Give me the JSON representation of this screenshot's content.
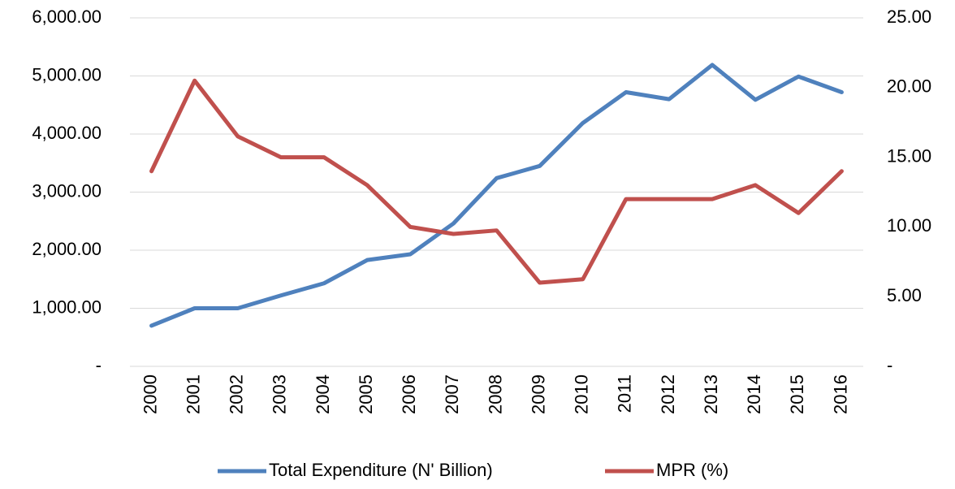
{
  "chart_data": {
    "type": "line",
    "categories": [
      "2000",
      "2001",
      "2002",
      "2003",
      "2004",
      "2005",
      "2006",
      "2007",
      "2008",
      "2009",
      "2010",
      "2011",
      "2012",
      "2013",
      "2014",
      "2015",
      "2016"
    ],
    "series": [
      {
        "name": "Total Expenditure (N' Billion)",
        "color": "#4f81bd",
        "values": [
          700,
          1000,
          1000,
          1220,
          1430,
          1830,
          1930,
          2460,
          3240,
          3450,
          4190,
          4720,
          4600,
          5190,
          4590,
          4990,
          4720
        ]
      },
      {
        "name": "MPR (%)",
        "color": "#c0504d",
        "axis": "y2",
        "values": [
          14,
          20.5,
          16.5,
          15,
          15,
          13,
          10,
          9.5,
          9.75,
          6,
          6.25,
          12,
          12,
          12,
          13,
          11,
          14
        ]
      }
    ],
    "ylim": [
      0,
      6000
    ],
    "yticks": [
      {
        "value": 0,
        "label": "-"
      },
      {
        "value": 1000,
        "label": "1,000.00"
      },
      {
        "value": 2000,
        "label": "2,000.00"
      },
      {
        "value": 3000,
        "label": "3,000.00"
      },
      {
        "value": 4000,
        "label": "4,000.00"
      },
      {
        "value": 5000,
        "label": "5,000.00"
      },
      {
        "value": 6000,
        "label": "6,000.00"
      }
    ],
    "y2lim": [
      0,
      25
    ],
    "y2ticks": [
      {
        "value": 0,
        "label": "-"
      },
      {
        "value": 5,
        "label": "5.00"
      },
      {
        "value": 10,
        "label": "10.00"
      },
      {
        "value": 15,
        "label": "15.00"
      },
      {
        "value": 20,
        "label": "20.00"
      },
      {
        "value": 25,
        "label": "25.00"
      }
    ],
    "grid": true,
    "legend": "bottom"
  }
}
